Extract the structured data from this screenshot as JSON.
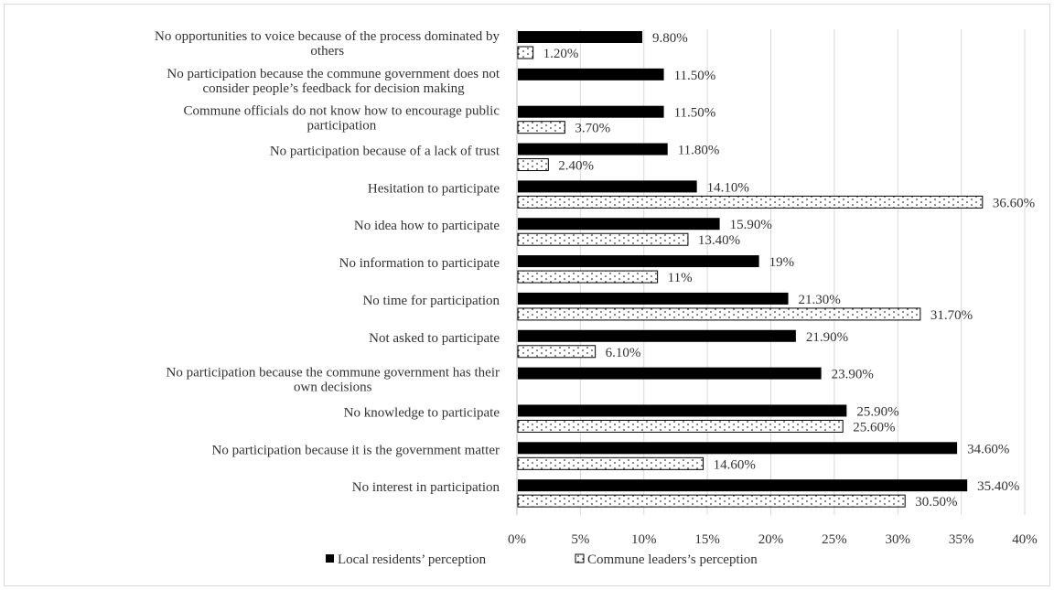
{
  "chart_data": {
    "type": "bar",
    "orientation": "horizontal",
    "categories": [
      [
        "No opportunities to voice because of the process dominated by",
        "others"
      ],
      [
        "No participation because the commune government does not",
        "consider people’s feedback for decision making"
      ],
      [
        "Commune officials do not know how to encourage public",
        "participation"
      ],
      [
        "No participation because of a lack of trust"
      ],
      [
        "Hesitation to participate"
      ],
      [
        "No idea how to participate"
      ],
      [
        "No information to participate"
      ],
      [
        "No time for participation"
      ],
      [
        "Not asked to participate"
      ],
      [
        "No participation because the commune government has their",
        "own decisions"
      ],
      [
        "No knowledge to participate"
      ],
      [
        "No participation because it is the government matter"
      ],
      [
        "No interest in participation"
      ]
    ],
    "series": [
      {
        "name": "Local residents’ perception",
        "color": "#000000",
        "fill": "solid",
        "values": [
          9.8,
          11.5,
          11.5,
          11.8,
          14.1,
          15.9,
          19,
          21.3,
          21.9,
          23.9,
          25.9,
          34.6,
          35.4
        ],
        "labels": [
          "9.80%",
          "11.50%",
          "11.50%",
          "11.80%",
          "14.10%",
          "15.90%",
          "19%",
          "21.30%",
          "21.90%",
          "23.90%",
          "25.90%",
          "34.60%",
          "35.40%"
        ]
      },
      {
        "name": "Commune leaders’s perception",
        "color": "#000000",
        "fill": "dotted",
        "values": [
          1.2,
          null,
          3.7,
          2.4,
          36.6,
          13.4,
          11,
          31.7,
          6.1,
          null,
          25.6,
          14.6,
          30.5
        ],
        "labels": [
          "1.20%",
          "",
          "3.70%",
          "2.40%",
          "36.60%",
          "13.40%",
          "11%",
          "31.70%",
          "6.10%",
          "",
          "25.60%",
          "14.60%",
          "30.50%"
        ]
      }
    ],
    "xlim": [
      0,
      40
    ],
    "xticks": [
      0,
      5,
      10,
      15,
      20,
      25,
      30,
      35,
      40
    ],
    "xtick_labels": [
      "0%",
      "5%",
      "10%",
      "15%",
      "20%",
      "25%",
      "30%",
      "35%",
      "40%"
    ],
    "grid": true,
    "legend_position": "bottom"
  }
}
